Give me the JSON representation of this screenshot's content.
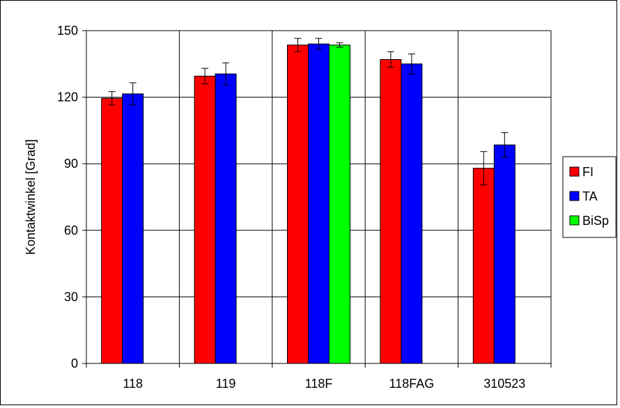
{
  "chart_data": {
    "type": "bar",
    "title": "",
    "xlabel": "",
    "ylabel": "Kontaktwinkel [Grad]",
    "ylim": [
      0,
      150
    ],
    "yticks": [
      "0",
      "30",
      "60",
      "90",
      "120",
      "150"
    ],
    "categories": [
      "118",
      "119",
      "118F",
      "118FAG",
      "310523"
    ],
    "grid": true,
    "legend_position": "right",
    "series": [
      {
        "name": "FI",
        "color": "#ff0000",
        "values": [
          119.5,
          129.5,
          143.5,
          137.0,
          88.0
        ],
        "errors": [
          3.0,
          3.5,
          3.0,
          3.5,
          7.5
        ]
      },
      {
        "name": "TA",
        "color": "#0000ff",
        "values": [
          121.5,
          130.5,
          144.0,
          135.0,
          98.5
        ],
        "errors": [
          5.0,
          5.0,
          2.5,
          4.5,
          5.5
        ]
      },
      {
        "name": "BiSp",
        "color": "#00ff00",
        "values": [
          null,
          null,
          143.5,
          null,
          null
        ],
        "errors": [
          null,
          null,
          1.0,
          null,
          null
        ]
      }
    ]
  }
}
